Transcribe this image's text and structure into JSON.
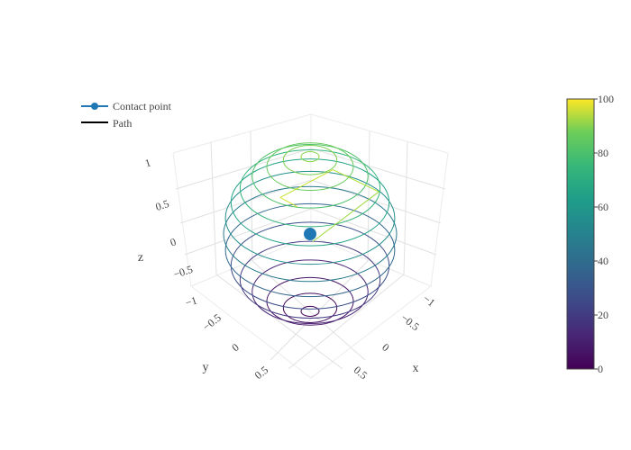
{
  "chart_data": {
    "type": "3d-scatter",
    "title": "",
    "surface": {
      "shape": "sphere",
      "radius": 1,
      "rendering": "contour-rings",
      "ring_count": 15,
      "colorscale": "viridis"
    },
    "axes": {
      "x": {
        "title": "x",
        "range": [
          -1,
          1
        ],
        "ticks": [
          "−1",
          "−0.5",
          "0",
          "0.5"
        ]
      },
      "y": {
        "title": "y",
        "range": [
          -1,
          1
        ],
        "ticks": [
          "−0.5",
          "0",
          "0.5"
        ]
      },
      "z": {
        "title": "z",
        "range": [
          -1,
          1
        ],
        "ticks": [
          "−1",
          "−0.5",
          "0",
          "0.5",
          "1"
        ]
      },
      "grid": true
    },
    "series": [
      {
        "name": "Contact point",
        "mode": "lines+markers",
        "color": "#1f77b4",
        "points": [
          [
            0,
            0,
            0
          ]
        ]
      },
      {
        "name": "Path",
        "mode": "lines",
        "color": "#000000",
        "line_colorscale": "viridis",
        "points": [
          [
            0.46,
            0.5,
            0.2
          ],
          [
            -0.76,
            0.3,
            0.4
          ],
          [
            -0.7,
            -0.35,
            0.5
          ],
          [
            0.36,
            -0.1,
            0.55
          ],
          [
            0.5,
            0.3,
            0.6
          ]
        ]
      }
    ],
    "legend": {
      "position": "top-left"
    },
    "colorbar": {
      "min": 0,
      "max": 100,
      "ticks": [
        "0",
        "20",
        "40",
        "60",
        "80",
        "100"
      ]
    }
  }
}
